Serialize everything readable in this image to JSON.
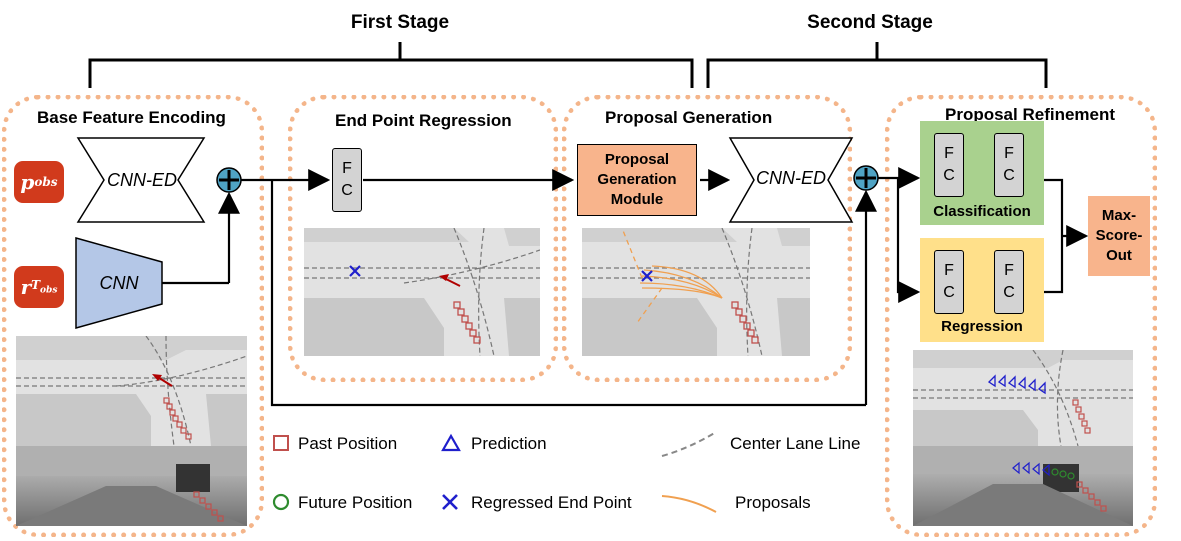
{
  "stages": {
    "first": "First Stage",
    "second": "Second Stage"
  },
  "sections": {
    "base_feature_encoding": "Base Feature Encoding",
    "end_point_regression": "End Point Regression",
    "proposal_generation": "Proposal Generation",
    "proposal_refinement": "Proposal Refinement"
  },
  "inputs": {
    "p_obs_main": "p",
    "p_obs_sub": "obs",
    "r_main": "r",
    "r_sub": "T",
    "r_subsub": "obs"
  },
  "modules": {
    "cnn_ed_1": "CNN-ED",
    "cnn": "CNN",
    "cnn_ed_2": "CNN-ED",
    "fc_f": "F",
    "fc_c": "C",
    "proposal_module": "Proposal Generation Module",
    "classification": "Classification",
    "regression": "Regression",
    "max_score_out": "Max-Score-Out"
  },
  "legend": {
    "past_position": "Past Position",
    "prediction": "Prediction",
    "center_lane_line": "Center Lane Line",
    "future_position": "Future Position",
    "regressed_end_point": "Regressed End Point",
    "proposals": "Proposals"
  },
  "colors": {
    "section_border": "#f4b58a",
    "input_tag": "#d13a1c",
    "proposal_module": "#f8b48c",
    "classification_bg": "#a9d18e",
    "regression_bg": "#ffe08a",
    "max_score_bg": "#f8b48c",
    "cnn_bg": "#b4c7e7",
    "plus_node": "#4fa3c4",
    "past": "#c0504d",
    "prediction": "#1f1fcc",
    "future": "#2e8b2e",
    "proposal_curve": "#f0a050"
  }
}
